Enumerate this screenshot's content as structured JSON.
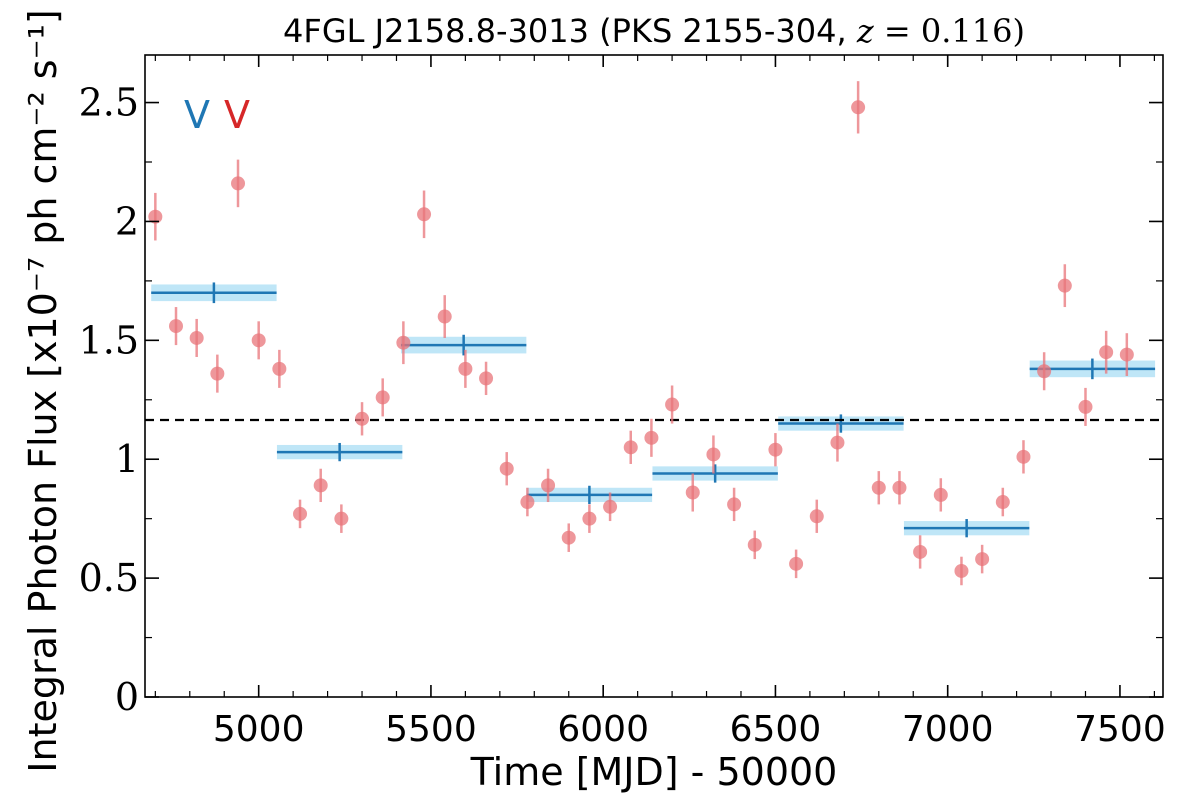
{
  "chart_data": {
    "type": "scatter",
    "title": "4FGL J2158.8-3013 (PKS 2155-304, z = 0.116)",
    "xlabel": "Time [MJD] - 50000",
    "ylabel": "Integral Photon Flux [x10⁻⁷ ph cm⁻² s⁻¹]",
    "xlim": [
      4670,
      7625
    ],
    "ylim": [
      0,
      2.7
    ],
    "x_ticks": [
      5000,
      5500,
      6000,
      6500,
      7000,
      7500
    ],
    "x_tick_labels": [
      "5000",
      "5500",
      "6000",
      "6500",
      "7000",
      "7500"
    ],
    "y_ticks": [
      0,
      0.5,
      1,
      1.5,
      2,
      2.5
    ],
    "y_tick_labels": [
      "0",
      "0.5",
      "1",
      "1.5",
      "2",
      "2.5"
    ],
    "reference_line": 1.165,
    "markers": [
      {
        "label": "V",
        "color": "#1f77b4"
      },
      {
        "label": "V",
        "color": "#d62728"
      }
    ],
    "colors": {
      "points": "#e8747a",
      "bins": "#1f77b4",
      "bin_band": "#bfe6f7"
    },
    "series": [
      {
        "kind": "monthly",
        "x": [
          4700,
          4760,
          4820,
          4880,
          4940,
          5000,
          5060,
          5120,
          5180,
          5240,
          5300,
          5360,
          5420,
          5480,
          5540,
          5600,
          5660,
          5720,
          5780,
          5840,
          5900,
          5960,
          6020,
          6080,
          6140,
          6200,
          6260,
          6320,
          6380,
          6440,
          6500,
          6560,
          6620,
          6680,
          6740,
          6800,
          6860,
          6920,
          6980,
          7040,
          7100,
          7160,
          7220,
          7280,
          7340,
          7400,
          7460,
          7520
        ],
        "y": [
          2.02,
          1.56,
          1.51,
          1.36,
          2.16,
          1.5,
          1.38,
          0.77,
          0.89,
          0.75,
          1.17,
          1.26,
          1.49,
          2.03,
          1.6,
          1.38,
          1.34,
          0.96,
          0.82,
          0.89,
          0.67,
          0.75,
          0.8,
          1.05,
          1.09,
          1.23,
          0.86,
          1.02,
          0.81,
          0.64,
          1.04,
          0.56,
          0.76,
          1.07,
          2.48,
          0.88,
          0.88,
          0.61,
          0.85,
          0.53,
          0.58,
          0.82,
          1.01,
          1.37,
          1.73,
          1.22,
          1.45,
          1.44
        ],
        "yerr": [
          0.1,
          0.08,
          0.08,
          0.08,
          0.1,
          0.08,
          0.08,
          0.06,
          0.07,
          0.06,
          0.07,
          0.08,
          0.09,
          0.1,
          0.09,
          0.08,
          0.07,
          0.07,
          0.06,
          0.07,
          0.06,
          0.06,
          0.06,
          0.07,
          0.08,
          0.08,
          0.08,
          0.08,
          0.07,
          0.06,
          0.07,
          0.06,
          0.07,
          0.08,
          0.11,
          0.07,
          0.07,
          0.07,
          0.07,
          0.06,
          0.06,
          0.06,
          0.07,
          0.08,
          0.09,
          0.08,
          0.09,
          0.09
        ]
      },
      {
        "kind": "binned",
        "x": [
          4870,
          5235,
          5595,
          5960,
          6325,
          6690,
          7055,
          7420
        ],
        "xerr": [
          182,
          182,
          182,
          182,
          182,
          182,
          182,
          182
        ],
        "y": [
          1.7,
          1.03,
          1.48,
          0.85,
          0.94,
          1.15,
          0.71,
          1.38
        ],
        "yerr": [
          0.035,
          0.03,
          0.035,
          0.03,
          0.03,
          0.03,
          0.03,
          0.035
        ]
      }
    ]
  }
}
